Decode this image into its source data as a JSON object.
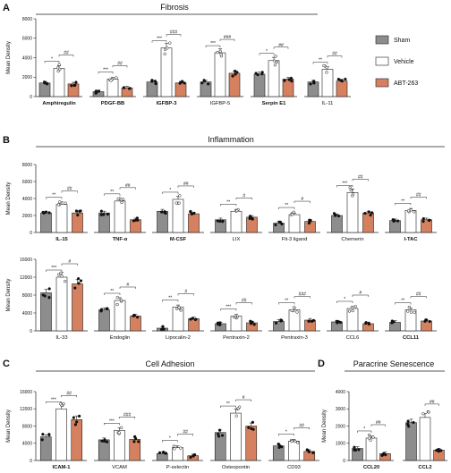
{
  "colors": {
    "sham": "#8d8d8d",
    "vehicle": "#ffffff",
    "abt": "#d5815f",
    "edge": "#222222"
  },
  "legend": [
    {
      "name": "Sham",
      "color": "#8d8d8d"
    },
    {
      "name": "Vehicle",
      "color": "#ffffff"
    },
    {
      "name": "ABT-263",
      "color": "#d5815f"
    }
  ],
  "panels": [
    {
      "letter": "A",
      "title": "Fibrosis"
    },
    {
      "letter": "B",
      "title": "Inflammation"
    },
    {
      "letter": "C",
      "title": "Cell Adhesion"
    },
    {
      "letter": "D",
      "title": "Paracrine Senescence"
    }
  ],
  "chart_data": [
    {
      "type": "bar",
      "panel": "A",
      "ylabel": "Mean Density",
      "ylim": [
        0,
        8000
      ],
      "yticks": [
        "0",
        "2000",
        "4000",
        "6000",
        "8000"
      ],
      "series": [
        {
          "name": "Sham"
        },
        {
          "name": "Vehicle"
        },
        {
          "name": "ABT-263"
        }
      ],
      "groups": [
        {
          "label": "Amphiregulin",
          "bold": true,
          "values": [
            1400,
            2900,
            1300
          ],
          "sig1": "*",
          "sig2": "##"
        },
        {
          "label": "PDGF-BB",
          "bold": true,
          "values": [
            500,
            1800,
            900
          ],
          "sig1": "***",
          "sig2": "##"
        },
        {
          "label": "IGFBP-3",
          "bold": true,
          "values": [
            1500,
            5000,
            1400
          ],
          "sig1": "***",
          "sig2": "###"
        },
        {
          "label": "IGFBP-5",
          "bold": false,
          "values": [
            1500,
            4500,
            2400
          ],
          "sig1": "***",
          "sig2": "###"
        },
        {
          "label": "Serpin E1",
          "bold": true,
          "values": [
            2300,
            3700,
            1800
          ],
          "sig1": "*",
          "sig2": "##"
        },
        {
          "label": "IL-11",
          "bold": false,
          "values": [
            1500,
            2800,
            1600
          ],
          "sig1": "**",
          "sig2": "##"
        }
      ]
    },
    {
      "type": "bar",
      "panel": "B1",
      "ylabel": "Mean Density",
      "ylim": [
        0,
        8000
      ],
      "yticks": [
        "0",
        "2000",
        "4000",
        "6000",
        "8000"
      ],
      "series": [
        {
          "name": "Sham"
        },
        {
          "name": "Vehicle"
        },
        {
          "name": "ABT-263"
        }
      ],
      "groups": [
        {
          "label": "IL-15",
          "bold": true,
          "values": [
            2300,
            3300,
            2300
          ],
          "sig1": "**",
          "sig2": "##"
        },
        {
          "label": "TNF-α",
          "bold": true,
          "values": [
            2300,
            3700,
            1500
          ],
          "sig1": "**",
          "sig2": "##"
        },
        {
          "label": "M-CSF",
          "bold": true,
          "values": [
            2500,
            3900,
            2200
          ],
          "sig1": "*",
          "sig2": "##"
        },
        {
          "label": "LIX",
          "bold": false,
          "values": [
            1500,
            2500,
            1800
          ],
          "sig1": "**",
          "sig2": "#"
        },
        {
          "label": "Flt-3 ligand",
          "bold": false,
          "values": [
            1100,
            2100,
            1300
          ],
          "sig1": "**",
          "sig2": "#"
        },
        {
          "label": "Chemerin",
          "bold": false,
          "values": [
            2000,
            4700,
            2300
          ],
          "sig1": "***",
          "sig2": "##"
        },
        {
          "label": "I-TAC",
          "bold": true,
          "values": [
            1400,
            2600,
            1500
          ],
          "sig1": "**",
          "sig2": "##"
        }
      ]
    },
    {
      "type": "bar",
      "panel": "B2",
      "ylabel": "Mean Density",
      "ylim": [
        0,
        16000
      ],
      "yticks": [
        "0",
        "4000",
        "8000",
        "12000",
        "16000"
      ],
      "series": [
        {
          "name": "Sham"
        },
        {
          "name": "Vehicle"
        },
        {
          "name": "ABT-263"
        }
      ],
      "groups": [
        {
          "label": "IL-33",
          "bold": false,
          "values": [
            8500,
            12000,
            10500
          ],
          "sig1": "***",
          "sig2": "#"
        },
        {
          "label": "Endoglin",
          "bold": false,
          "values": [
            4700,
            6800,
            3300
          ],
          "sig1": "**",
          "sig2": "#"
        },
        {
          "label": "Lipocalin-2",
          "bold": false,
          "values": [
            600,
            5300,
            2700
          ],
          "sig1": "**",
          "sig2": "#"
        },
        {
          "label": "Pentraxin-2",
          "bold": false,
          "values": [
            1600,
            3300,
            1800
          ],
          "sig1": "***",
          "sig2": "##"
        },
        {
          "label": "Pentraxin-3",
          "bold": false,
          "values": [
            2100,
            4700,
            2400
          ],
          "sig1": "**",
          "sig2": "###"
        },
        {
          "label": "CCL6",
          "bold": false,
          "values": [
            2000,
            5000,
            1600
          ],
          "sig1": "*",
          "sig2": "#"
        },
        {
          "label": "CCL11",
          "bold": true,
          "values": [
            1900,
            4700,
            2200
          ],
          "sig1": "**",
          "sig2": "##"
        }
      ]
    },
    {
      "type": "bar",
      "panel": "C",
      "ylabel": "Mean Density",
      "ylim": [
        0,
        16000
      ],
      "yticks": [
        "0",
        "4000",
        "8000",
        "12000",
        "16000"
      ],
      "series": [
        {
          "name": "Sham"
        },
        {
          "name": "Vehicle"
        },
        {
          "name": "ABT-263"
        }
      ],
      "groups": [
        {
          "label": "ICAM-1",
          "bold": true,
          "values": [
            5500,
            12000,
            9500
          ],
          "sig1": "***",
          "sig2": "##"
        },
        {
          "label": "VCAM",
          "bold": false,
          "values": [
            4800,
            7000,
            4900
          ],
          "sig1": "***",
          "sig2": "###"
        },
        {
          "label": "P-selectin",
          "bold": false,
          "values": [
            1600,
            3000,
            1100
          ],
          "sig1": "*",
          "sig2": "##"
        },
        {
          "label": "Osteopontin",
          "bold": false,
          "values": [
            6500,
            11000,
            8000
          ],
          "sig1": "**",
          "sig2": "#"
        },
        {
          "label": "CD93",
          "bold": false,
          "values": [
            3400,
            4500,
            2100
          ],
          "sig1": "*",
          "sig2": "##"
        }
      ]
    },
    {
      "type": "bar",
      "panel": "D",
      "ylabel": "Mean Density",
      "ylim": [
        0,
        4000
      ],
      "yticks": [
        "0",
        "1000",
        "2000",
        "3000",
        "4000"
      ],
      "series": [
        {
          "name": "Sham"
        },
        {
          "name": "Vehicle"
        },
        {
          "name": "ABT-263"
        }
      ],
      "groups": [
        {
          "label": "CCL20",
          "bold": true,
          "values": [
            700,
            1300,
            400
          ],
          "sig1": "*",
          "sig2": "##"
        },
        {
          "label": "CCL2",
          "bold": true,
          "values": [
            2200,
            2500,
            600
          ],
          "sig1": "",
          "sig2": "##"
        }
      ]
    }
  ]
}
